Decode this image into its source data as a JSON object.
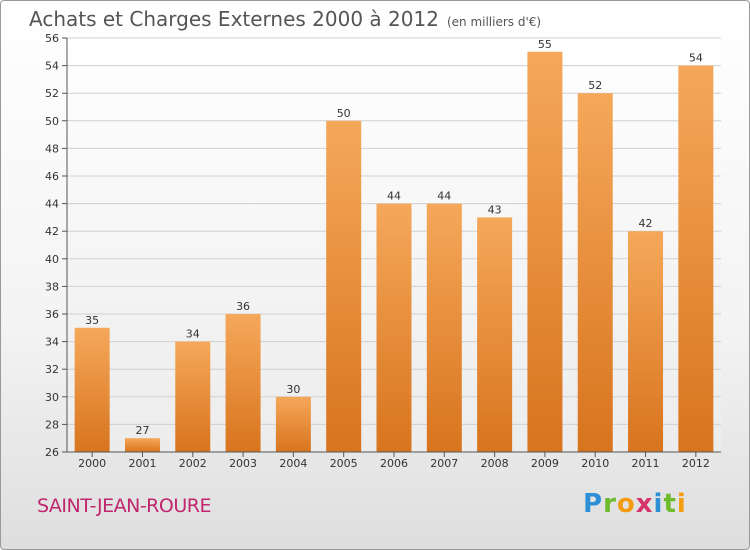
{
  "title": "Achats et Charges Externes 2000 à 2012",
  "subtitle": "(en milliers d'€)",
  "commune": "SAINT-JEAN-ROURE",
  "logo": {
    "text": "Proxiti",
    "letters": [
      {
        "ch": "P",
        "color": "#2d8fd5"
      },
      {
        "ch": "r",
        "color": "#6dbb2b"
      },
      {
        "ch": "o",
        "color": "#f39c12"
      },
      {
        "ch": "x",
        "color": "#d6336c"
      },
      {
        "ch": "i",
        "color": "#2d8fd5"
      },
      {
        "ch": "t",
        "color": "#6dbb2b"
      },
      {
        "ch": "i",
        "color": "#f39c12"
      }
    ]
  },
  "colors": {
    "bar_top": "#f5a85a",
    "bar_bottom": "#d8741e",
    "axis": "#555555",
    "grid": "#d0d0d0",
    "text": "#333333",
    "commune": "#c0266e"
  },
  "chart_data": {
    "type": "bar",
    "categories": [
      "2000",
      "2001",
      "2002",
      "2003",
      "2004",
      "2005",
      "2006",
      "2007",
      "2008",
      "2009",
      "2010",
      "2011",
      "2012"
    ],
    "values": [
      35,
      27,
      34,
      36,
      30,
      50,
      44,
      44,
      43,
      55,
      52,
      42,
      54
    ],
    "ylim": [
      26,
      56
    ],
    "yticks": [
      26,
      28,
      30,
      32,
      34,
      36,
      38,
      40,
      42,
      44,
      46,
      48,
      50,
      52,
      54,
      56
    ],
    "grid": true,
    "legend": "none"
  }
}
